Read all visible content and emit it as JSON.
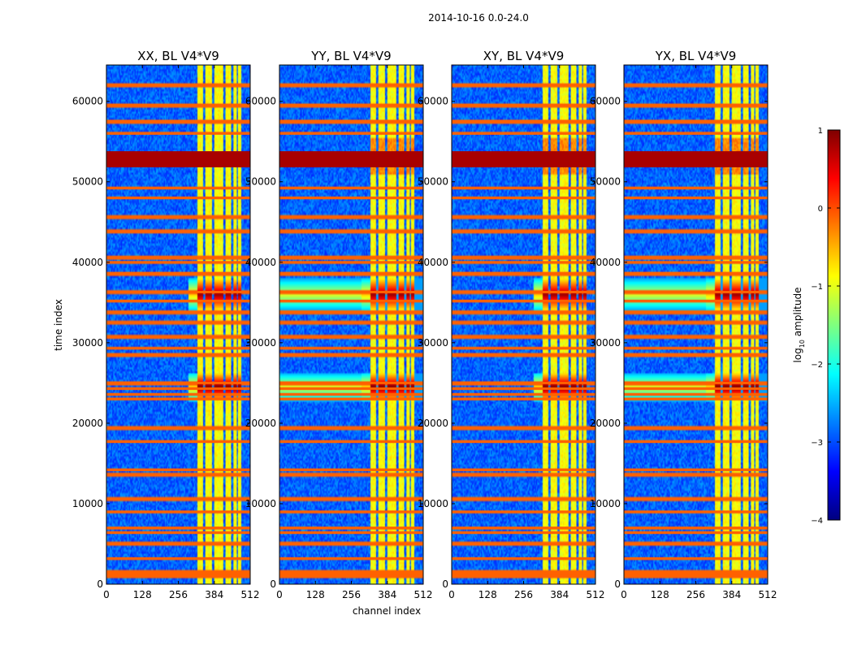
{
  "chart_data": {
    "type": "heatmap",
    "suptitle": "2014-10-16 0.0-24.0",
    "xlabel": "channel index",
    "ylabel": "time index",
    "xlim": [
      0,
      512
    ],
    "ylim": [
      0,
      64512
    ],
    "xticks": [
      0,
      128,
      256,
      384,
      512
    ],
    "yticks": [
      0,
      10000,
      20000,
      30000,
      40000,
      50000,
      60000
    ],
    "colorbar": {
      "label": "log10 amplitude",
      "label_main": "log",
      "label_sub": "10",
      "label_rest": " amplitude",
      "range": [
        -4,
        1
      ],
      "ticks": [
        1,
        0,
        -1,
        -2,
        -3,
        -4
      ],
      "colormap": [
        "#00007f",
        "#0000ff",
        "#007fff",
        "#00ffff",
        "#7fff7f",
        "#ffff00",
        "#ff7f00",
        "#ff0000",
        "#7f0000"
      ]
    },
    "panels": [
      {
        "title": "XX, BL V4*V9"
      },
      {
        "title": "YY, BL V4*V9"
      },
      {
        "title": "XY, BL V4*V9"
      },
      {
        "title": "YX, BL V4*V9"
      }
    ],
    "features": {
      "background_level": -2.9,
      "band_channels": [
        [
          325,
          345
        ],
        [
          352,
          375
        ],
        [
          383,
          415
        ],
        [
          423,
          445
        ],
        [
          452,
          462
        ],
        [
          470,
          478
        ]
      ],
      "band_level": -0.9,
      "saturated_block": [
        51800,
        53800
      ],
      "saturated_level": 0.8,
      "strong_row_level": -0.1,
      "strong_rows": [
        1000,
        1500,
        3200,
        5000,
        6400,
        7000,
        9000,
        10600,
        13600,
        14200,
        17700,
        19400,
        23000,
        23600,
        24300,
        25000,
        28500,
        29300,
        30700,
        32500,
        33800,
        35200,
        36300,
        38600,
        40000,
        40600,
        43800,
        45600,
        48000,
        49200,
        56000,
        57500,
        59500,
        62000
      ],
      "bursts": [
        {
          "center": 24500,
          "halfwidth": 1800,
          "level": 0.7
        },
        {
          "center": 36000,
          "halfwidth": 2000,
          "level": 0.6
        }
      ],
      "upper_band_rows": [
        51000,
        55500
      ]
    }
  }
}
